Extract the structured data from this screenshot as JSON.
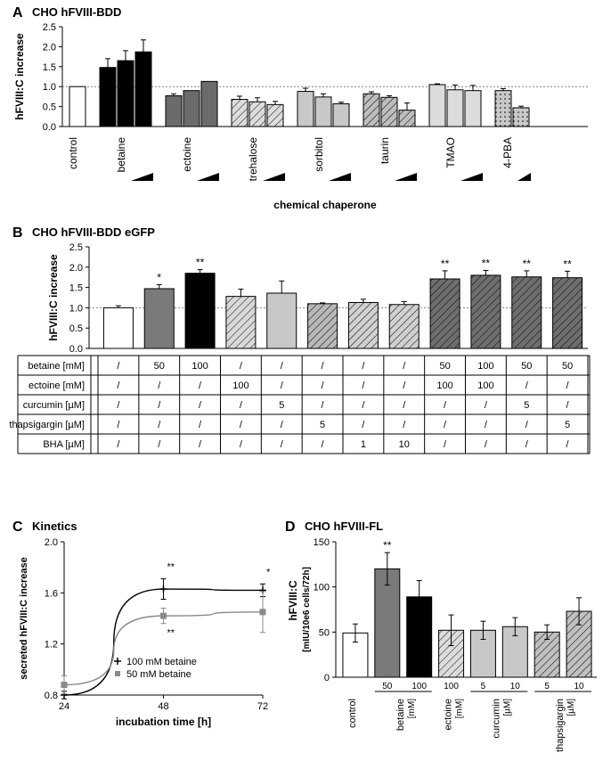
{
  "panelA": {
    "label": "A",
    "title": "CHO hFVIII-BDD",
    "type": "bar",
    "y_label": "hFVIII:C increase",
    "x_label": "chemical chaperone",
    "ylim": [
      0,
      2.5
    ],
    "ytick_step": 0.5,
    "refline": 1.0,
    "groups": [
      {
        "name": "control",
        "bars": [
          {
            "v": 1.0,
            "err": 0
          }
        ],
        "fill": "#ffffff",
        "hatch": "none"
      },
      {
        "name": "betaine",
        "bars": [
          {
            "v": 1.48,
            "err": 0.22
          },
          {
            "v": 1.65,
            "err": 0.25
          },
          {
            "v": 1.87,
            "err": 0.3
          }
        ],
        "fill": "#000000",
        "hatch": "none"
      },
      {
        "name": "ectoine",
        "bars": [
          {
            "v": 0.77,
            "err": 0.05
          },
          {
            "v": 0.9,
            "err": 0
          },
          {
            "v": 1.13,
            "err": 0
          }
        ],
        "fill": "#6b6b6b",
        "hatch": "none"
      },
      {
        "name": "trehalose",
        "bars": [
          {
            "v": 0.68,
            "err": 0.08
          },
          {
            "v": 0.62,
            "err": 0.1
          },
          {
            "v": 0.55,
            "err": 0.08
          }
        ],
        "fill": "#dcdcdc",
        "hatch": "diag"
      },
      {
        "name": "sorbitol",
        "bars": [
          {
            "v": 0.88,
            "err": 0.08
          },
          {
            "v": 0.74,
            "err": 0.08
          },
          {
            "v": 0.57,
            "err": 0.04
          }
        ],
        "fill": "#c8c8c8",
        "hatch": "none"
      },
      {
        "name": "taurin",
        "bars": [
          {
            "v": 0.82,
            "err": 0.05
          },
          {
            "v": 0.73,
            "err": 0.04
          },
          {
            "v": 0.41,
            "err": 0.18
          }
        ],
        "fill": "#bdbdbd",
        "hatch": "diag"
      },
      {
        "name": "TMAO",
        "bars": [
          {
            "v": 1.05,
            "err": 0.02
          },
          {
            "v": 0.92,
            "err": 0.12
          },
          {
            "v": 0.9,
            "err": 0.13
          }
        ],
        "fill": "#dcdcdc",
        "hatch": "none"
      },
      {
        "name": "4-PBA",
        "bars": [
          {
            "v": 0.9,
            "err": 0.05
          },
          {
            "v": 0.47,
            "err": 0.04
          }
        ],
        "fill": "#c8c8c8",
        "hatch": "dots"
      }
    ],
    "colors": {
      "axis": "#000000",
      "ref": "#808080"
    }
  },
  "panelB": {
    "label": "B",
    "title": "CHO hFVIII-BDD eGFP",
    "type": "bar",
    "y_label": "hFVIII:C increase",
    "ylim": [
      0,
      2.5
    ],
    "ytick_step": 0.5,
    "refline": 1.0,
    "bars": [
      {
        "v": 1.0,
        "err": 0.05,
        "fill": "#ffffff",
        "hatch": "none",
        "sig": ""
      },
      {
        "v": 1.47,
        "err": 0.1,
        "fill": "#7a7a7a",
        "hatch": "none",
        "sig": "*"
      },
      {
        "v": 1.85,
        "err": 0.09,
        "fill": "#000000",
        "hatch": "none",
        "sig": "**"
      },
      {
        "v": 1.28,
        "err": 0.18,
        "fill": "#d8d8d8",
        "hatch": "diag",
        "sig": ""
      },
      {
        "v": 1.36,
        "err": 0.3,
        "fill": "#c8c8c8",
        "hatch": "none",
        "sig": ""
      },
      {
        "v": 1.1,
        "err": 0.02,
        "fill": "#b8b8b8",
        "hatch": "diag",
        "sig": ""
      },
      {
        "v": 1.13,
        "err": 0.08,
        "fill": "#d0d0d0",
        "hatch": "diag",
        "sig": ""
      },
      {
        "v": 1.08,
        "err": 0.07,
        "fill": "#d0d0d0",
        "hatch": "diag",
        "sig": ""
      },
      {
        "v": 1.71,
        "err": 0.2,
        "fill": "#6e6e6e",
        "hatch": "diag",
        "sig": "**"
      },
      {
        "v": 1.8,
        "err": 0.12,
        "fill": "#6e6e6e",
        "hatch": "diag",
        "sig": "**"
      },
      {
        "v": 1.76,
        "err": 0.15,
        "fill": "#6e6e6e",
        "hatch": "diag",
        "sig": "**"
      },
      {
        "v": 1.74,
        "err": 0.16,
        "fill": "#6e6e6e",
        "hatch": "diag",
        "sig": "**"
      }
    ],
    "table": {
      "rows": [
        {
          "label": "betaine [mM]",
          "cells": [
            "/",
            "50",
            "100",
            "/",
            "/",
            "/",
            "/",
            "/",
            "50",
            "100",
            "50",
            "50"
          ]
        },
        {
          "label": "ectoine [mM]",
          "cells": [
            "/",
            "/",
            "/",
            "100",
            "/",
            "/",
            "/",
            "/",
            "100",
            "100",
            "/",
            "/"
          ]
        },
        {
          "label": "curcumin [µM]",
          "cells": [
            "/",
            "/",
            "/",
            "/",
            "5",
            "/",
            "/",
            "/",
            "/",
            "/",
            "5",
            "/"
          ]
        },
        {
          "label": "thapsigargin [µM]",
          "cells": [
            "/",
            "/",
            "/",
            "/",
            "/",
            "5",
            "/",
            "/",
            "/",
            "/",
            "/",
            "5"
          ]
        },
        {
          "label": "BHA [µM]",
          "cells": [
            "/",
            "/",
            "/",
            "/",
            "/",
            "/",
            "1",
            "10",
            "/",
            "/",
            "/",
            "/"
          ]
        }
      ]
    }
  },
  "panelC": {
    "label": "C",
    "title": "Kinetics",
    "type": "line",
    "y_label": "secreted hFVIII:C increase",
    "x_label": "incubation time [h]",
    "yticks": [
      0.8,
      1.2,
      1.6,
      2.0
    ],
    "xticks": [
      24,
      48,
      72
    ],
    "series": [
      {
        "name": "100 mM betaine",
        "marker": "plus",
        "color": "#000000",
        "points": [
          {
            "x": 24,
            "y": 0.8,
            "err": 0.03,
            "sig": ""
          },
          {
            "x": 48,
            "y": 1.63,
            "err": 0.08,
            "sig": "**"
          },
          {
            "x": 72,
            "y": 1.62,
            "err": 0.05,
            "sig": "*"
          }
        ]
      },
      {
        "name": "50 mM betaine",
        "marker": "square",
        "color": "#8a8a8a",
        "points": [
          {
            "x": 24,
            "y": 0.88,
            "err": 0.07,
            "sig": ""
          },
          {
            "x": 48,
            "y": 1.42,
            "err": 0.06,
            "sig": "**"
          },
          {
            "x": 72,
            "y": 1.45,
            "err": 0.16,
            "sig": ""
          }
        ]
      }
    ]
  },
  "panelD": {
    "label": "D",
    "title": "CHO hFVIII-FL",
    "type": "bar",
    "y_label_line1": "hFVIII:C",
    "y_label_line2": "[mIU/10e6 cells/72h]",
    "ylim": [
      0,
      150
    ],
    "ytick_step": 50,
    "bars": [
      {
        "v": 49,
        "err": 10,
        "fill": "#ffffff",
        "hatch": "none",
        "sig": ""
      },
      {
        "v": 120,
        "err": 18,
        "fill": "#7a7a7a",
        "hatch": "none",
        "sig": "**"
      },
      {
        "v": 89,
        "err": 18,
        "fill": "#000000",
        "hatch": "none",
        "sig": ""
      },
      {
        "v": 52,
        "err": 17,
        "fill": "#dcdcdc",
        "hatch": "diag",
        "sig": ""
      },
      {
        "v": 52,
        "err": 10,
        "fill": "#c8c8c8",
        "hatch": "none",
        "sig": ""
      },
      {
        "v": 56,
        "err": 10,
        "fill": "#c8c8c8",
        "hatch": "none",
        "sig": ""
      },
      {
        "v": 50,
        "err": 8,
        "fill": "#c0c0c0",
        "hatch": "diag",
        "sig": ""
      },
      {
        "v": 73,
        "err": 15,
        "fill": "#c0c0c0",
        "hatch": "diag",
        "sig": ""
      }
    ],
    "xgroups": [
      {
        "label": "control",
        "span": 1,
        "sub": [
          ""
        ]
      },
      {
        "label": "betaine",
        "span": 2,
        "sub": [
          "50",
          "100"
        ],
        "unit": "[mM]"
      },
      {
        "label": "ectoine",
        "span": 1,
        "sub": [
          "100"
        ],
        "unit": "[mM]"
      },
      {
        "label": "curcumin",
        "span": 2,
        "sub": [
          "5",
          "10"
        ],
        "unit": "[µM]"
      },
      {
        "label": "thapsigargin",
        "span": 2,
        "sub": [
          "5",
          "10"
        ],
        "unit": "[µM]"
      }
    ]
  }
}
